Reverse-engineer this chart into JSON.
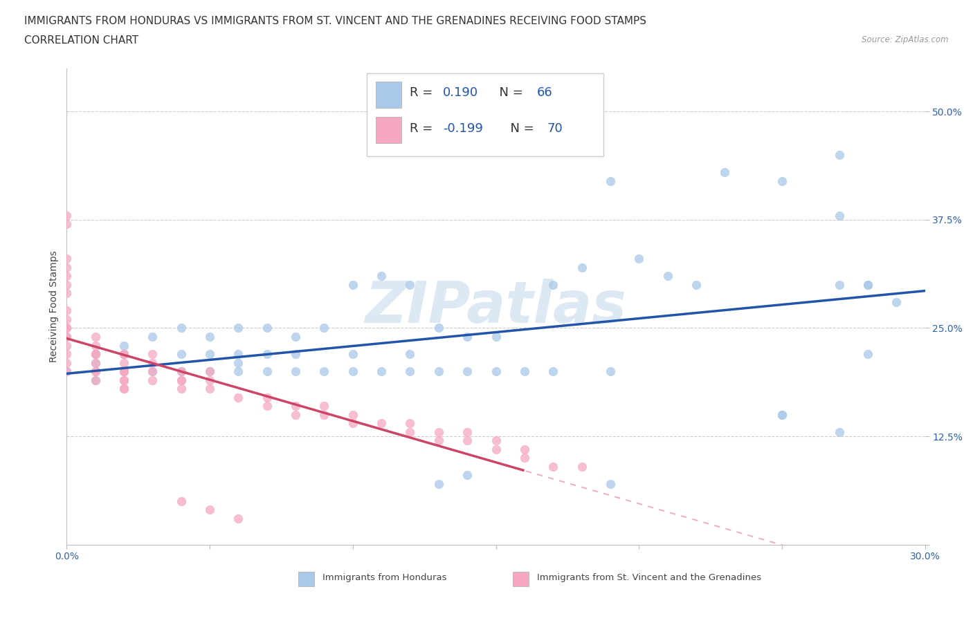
{
  "title_line1": "IMMIGRANTS FROM HONDURAS VS IMMIGRANTS FROM ST. VINCENT AND THE GRENADINES RECEIVING FOOD STAMPS",
  "title_line2": "CORRELATION CHART",
  "source_text": "Source: ZipAtlas.com",
  "ylabel": "Receiving Food Stamps",
  "xlim": [
    0.0,
    0.3
  ],
  "ylim": [
    0.0,
    0.55
  ],
  "y_ticks": [
    0.0,
    0.125,
    0.25,
    0.375,
    0.5
  ],
  "y_tick_labels": [
    "",
    "12.5%",
    "25.0%",
    "37.5%",
    "50.0%"
  ],
  "grid_color": "#cccccc",
  "watermark": "ZIPatlas",
  "blue_color": "#aac8e8",
  "pink_color": "#f5a8bf",
  "blue_line_color": "#2255aa",
  "pink_line_color": "#cc4466",
  "pink_line_dash_color": "#f0b0c0",
  "bg_color": "#ffffff",
  "honduras_x": [
    0.0,
    0.01,
    0.01,
    0.01,
    0.02,
    0.02,
    0.02,
    0.03,
    0.03,
    0.04,
    0.04,
    0.04,
    0.05,
    0.05,
    0.05,
    0.06,
    0.06,
    0.06,
    0.06,
    0.07,
    0.07,
    0.07,
    0.08,
    0.08,
    0.08,
    0.09,
    0.09,
    0.1,
    0.1,
    0.1,
    0.11,
    0.11,
    0.12,
    0.12,
    0.12,
    0.13,
    0.13,
    0.14,
    0.14,
    0.15,
    0.15,
    0.16,
    0.17,
    0.17,
    0.18,
    0.19,
    0.19,
    0.2,
    0.21,
    0.22,
    0.23,
    0.25,
    0.25,
    0.27,
    0.27,
    0.27,
    0.28,
    0.28,
    0.29,
    0.13,
    0.14,
    0.19,
    0.25,
    0.27,
    0.28
  ],
  "honduras_y": [
    0.2,
    0.19,
    0.21,
    0.22,
    0.2,
    0.22,
    0.23,
    0.2,
    0.24,
    0.2,
    0.22,
    0.25,
    0.2,
    0.22,
    0.24,
    0.2,
    0.21,
    0.22,
    0.25,
    0.2,
    0.22,
    0.25,
    0.2,
    0.22,
    0.24,
    0.2,
    0.25,
    0.2,
    0.22,
    0.3,
    0.2,
    0.31,
    0.2,
    0.22,
    0.3,
    0.2,
    0.25,
    0.2,
    0.24,
    0.2,
    0.24,
    0.2,
    0.2,
    0.3,
    0.32,
    0.2,
    0.42,
    0.33,
    0.31,
    0.3,
    0.43,
    0.15,
    0.42,
    0.13,
    0.3,
    0.45,
    0.22,
    0.3,
    0.28,
    0.07,
    0.08,
    0.07,
    0.15,
    0.38,
    0.3
  ],
  "svg_x": [
    0.0,
    0.0,
    0.0,
    0.0,
    0.0,
    0.0,
    0.0,
    0.0,
    0.0,
    0.0,
    0.0,
    0.0,
    0.0,
    0.0,
    0.0,
    0.0,
    0.0,
    0.01,
    0.01,
    0.01,
    0.01,
    0.01,
    0.01,
    0.01,
    0.01,
    0.02,
    0.02,
    0.02,
    0.02,
    0.02,
    0.02,
    0.02,
    0.02,
    0.02,
    0.03,
    0.03,
    0.03,
    0.03,
    0.04,
    0.04,
    0.04,
    0.04,
    0.05,
    0.05,
    0.05,
    0.06,
    0.07,
    0.07,
    0.08,
    0.08,
    0.09,
    0.09,
    0.1,
    0.1,
    0.11,
    0.12,
    0.12,
    0.13,
    0.13,
    0.14,
    0.14,
    0.15,
    0.15,
    0.16,
    0.16,
    0.17,
    0.18,
    0.04,
    0.05,
    0.06
  ],
  "svg_y": [
    0.2,
    0.21,
    0.22,
    0.23,
    0.24,
    0.25,
    0.26,
    0.27,
    0.29,
    0.3,
    0.31,
    0.32,
    0.33,
    0.37,
    0.38,
    0.25,
    0.24,
    0.2,
    0.21,
    0.22,
    0.23,
    0.24,
    0.19,
    0.22,
    0.2,
    0.18,
    0.19,
    0.2,
    0.21,
    0.22,
    0.18,
    0.19,
    0.2,
    0.22,
    0.19,
    0.2,
    0.21,
    0.22,
    0.18,
    0.19,
    0.19,
    0.2,
    0.18,
    0.19,
    0.2,
    0.17,
    0.16,
    0.17,
    0.15,
    0.16,
    0.15,
    0.16,
    0.14,
    0.15,
    0.14,
    0.13,
    0.14,
    0.12,
    0.13,
    0.12,
    0.13,
    0.11,
    0.12,
    0.1,
    0.11,
    0.09,
    0.09,
    0.05,
    0.04,
    0.03
  ],
  "title_fontsize": 11,
  "subtitle_fontsize": 11,
  "axis_label_fontsize": 10,
  "tick_fontsize": 10,
  "legend_fontsize": 13,
  "watermark_fontsize": 60,
  "watermark_color": "#dce9f5",
  "legend_val_color": "#2255aa",
  "legend_label_color": "#333333"
}
